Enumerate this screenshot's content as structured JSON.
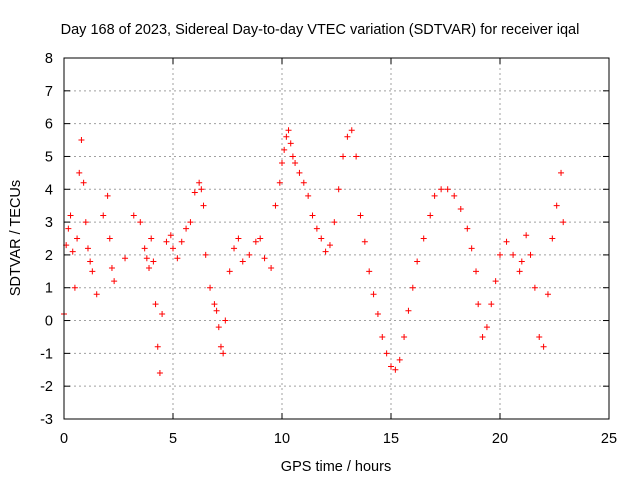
{
  "chart_data": {
    "type": "scatter",
    "title": "Day 168 of 2023, Sidereal Day-to-day VTEC variation (SDTVAR) for receiver iqal",
    "xlabel": "GPS time / hours",
    "ylabel": "SDTVAR / TECUs",
    "xlim": [
      0,
      25
    ],
    "ylim": [
      -3,
      8
    ],
    "xticks": [
      0,
      5,
      10,
      15,
      20,
      25
    ],
    "yticks": [
      -3,
      -2,
      -1,
      0,
      1,
      2,
      3,
      4,
      5,
      6,
      7,
      8
    ],
    "grid": true,
    "marker": "+",
    "color": "#ff0000",
    "series": [
      {
        "name": "SDTVAR",
        "x": [
          0.0,
          0.1,
          0.2,
          0.3,
          0.4,
          0.5,
          0.6,
          0.7,
          0.8,
          0.9,
          1.0,
          1.1,
          1.2,
          1.3,
          1.5,
          1.8,
          2.0,
          2.1,
          2.2,
          2.3,
          2.8,
          3.2,
          3.5,
          3.7,
          3.8,
          3.9,
          4.0,
          4.1,
          4.2,
          4.3,
          4.4,
          4.5,
          4.7,
          4.9,
          5.0,
          5.2,
          5.4,
          5.6,
          5.8,
          6.0,
          6.2,
          6.3,
          6.4,
          6.5,
          6.7,
          6.9,
          7.0,
          7.1,
          7.2,
          7.3,
          7.4,
          7.6,
          7.8,
          8.0,
          8.2,
          8.5,
          8.8,
          9.0,
          9.2,
          9.5,
          9.7,
          9.9,
          10.0,
          10.1,
          10.2,
          10.3,
          10.4,
          10.5,
          10.6,
          10.8,
          11.0,
          11.2,
          11.4,
          11.6,
          11.8,
          12.0,
          12.2,
          12.4,
          12.6,
          12.8,
          13.0,
          13.2,
          13.4,
          13.6,
          13.8,
          14.0,
          14.2,
          14.4,
          14.6,
          14.8,
          15.0,
          15.2,
          15.4,
          15.6,
          15.8,
          16.0,
          16.2,
          16.5,
          16.8,
          17.0,
          17.3,
          17.6,
          17.9,
          18.2,
          18.5,
          18.7,
          18.9,
          19.0,
          19.2,
          19.4,
          19.6,
          19.8,
          20.0,
          20.3,
          20.6,
          20.9,
          21.0,
          21.2,
          21.4,
          21.6,
          21.8,
          22.0,
          22.2,
          22.4,
          22.6,
          22.8,
          22.9
        ],
        "y": [
          0.2,
          2.3,
          2.8,
          3.2,
          2.1,
          1.0,
          2.5,
          4.5,
          5.5,
          4.2,
          3.0,
          2.2,
          1.8,
          1.5,
          0.8,
          3.2,
          3.8,
          2.5,
          1.6,
          1.2,
          1.9,
          3.2,
          3.0,
          2.2,
          1.9,
          1.6,
          2.5,
          1.8,
          0.5,
          -0.8,
          -1.6,
          0.2,
          2.4,
          2.6,
          2.2,
          1.9,
          2.4,
          2.8,
          3.0,
          3.9,
          4.2,
          4.0,
          3.5,
          2.0,
          1.0,
          0.5,
          0.3,
          -0.2,
          -0.8,
          -1.0,
          0.0,
          1.5,
          2.2,
          2.5,
          1.8,
          2.0,
          2.4,
          2.5,
          1.9,
          1.6,
          3.5,
          4.2,
          4.8,
          5.2,
          5.6,
          5.8,
          5.4,
          5.0,
          4.8,
          4.5,
          4.2,
          3.8,
          3.2,
          2.8,
          2.5,
          2.1,
          2.3,
          3.0,
          4.0,
          5.0,
          5.6,
          5.8,
          5.0,
          3.2,
          2.4,
          1.5,
          0.8,
          0.2,
          -0.5,
          -1.0,
          -1.4,
          -1.5,
          -1.2,
          -0.5,
          0.3,
          1.0,
          1.8,
          2.5,
          3.2,
          3.8,
          4.0,
          4.0,
          3.8,
          3.4,
          2.8,
          2.2,
          1.5,
          0.5,
          -0.5,
          -0.2,
          0.5,
          1.2,
          2.0,
          2.4,
          2.0,
          1.5,
          1.8,
          2.6,
          2.0,
          1.0,
          -0.5,
          -0.8,
          0.8,
          2.5,
          3.5,
          4.5,
          3.0
        ]
      }
    ]
  }
}
